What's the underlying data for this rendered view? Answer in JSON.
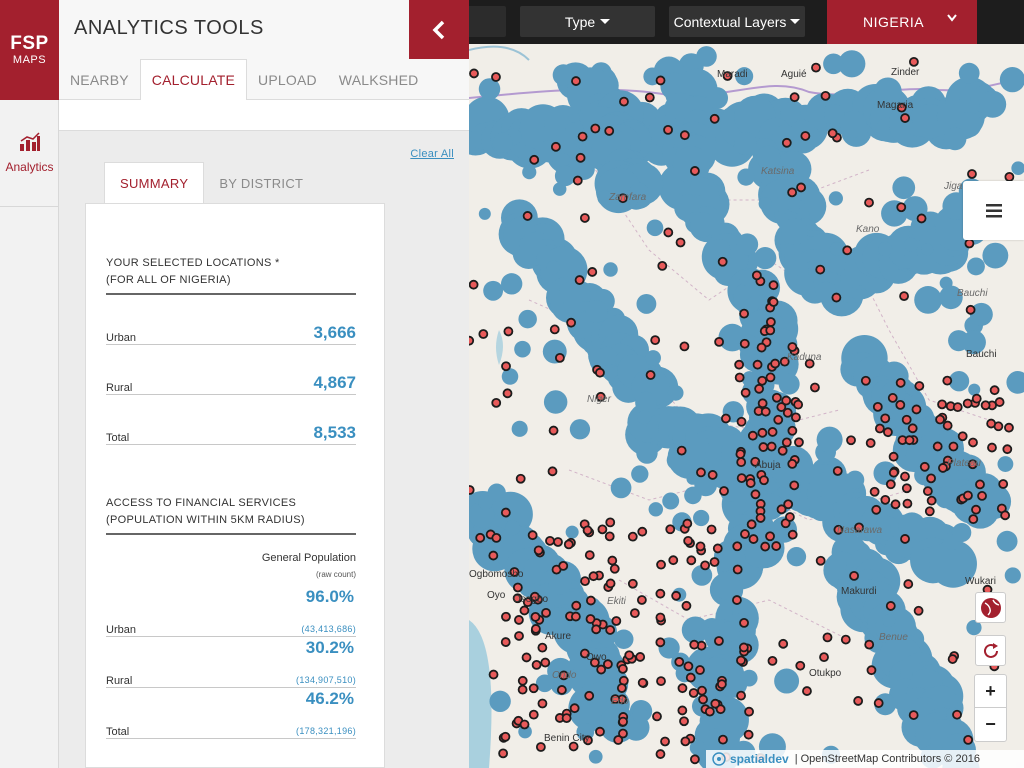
{
  "logo": {
    "line1": "FSP",
    "line2": "MAPS"
  },
  "rail": {
    "analytics_label": "Analytics"
  },
  "panel": {
    "title": "ANALYTICS TOOLS",
    "tabs": [
      "NEARBY",
      "CALCULATE",
      "UPLOAD",
      "WALKSHED"
    ],
    "active_tab": "CALCULATE",
    "clear_all": "Clear All",
    "sub_tabs": [
      "SUMMARY",
      "BY DISTRICT"
    ],
    "active_sub_tab": "SUMMARY"
  },
  "summary": {
    "selected_heading_1": "YOUR SELECTED LOCATIONS *",
    "selected_heading_2": "(FOR ALL OF NIGERIA)",
    "rows": [
      {
        "label": "Urban",
        "value": "3,666"
      },
      {
        "label": "Rural",
        "value": "4,867"
      },
      {
        "label": "Total",
        "value": "8,533"
      }
    ],
    "access_heading_1": "ACCESS TO FINANCIAL SERVICES",
    "access_heading_2": "(POPULATION WITHIN 5KM RADIUS)",
    "population_header": "General Population",
    "raw_count_label": "(raw count)",
    "access_rows": [
      {
        "label": "Urban",
        "percent": "96.0%",
        "count": "(43,413,686)"
      },
      {
        "label": "Rural",
        "percent": "30.2%",
        "count": "(134,907,510)"
      },
      {
        "label": "Total",
        "percent": "46.2%",
        "count": "(178,321,196)"
      }
    ]
  },
  "toolbar": {
    "type_label": "Type",
    "layers_label": "Contextual Layers",
    "country": "NIGERIA"
  },
  "map": {
    "labels": [
      "Zinder",
      "Maradi",
      "Aguié",
      "Magaria",
      "Zamfara",
      "Katsina",
      "Kano",
      "Jigawa",
      "Kaduna",
      "Bauchi",
      "Bauchi",
      "Niger",
      "Abuja",
      "Nasarawa",
      "Plateau",
      "Makurdi",
      "Benue",
      "Wukari",
      "Ogbomosho",
      "Oyo",
      "Osogbo",
      "Akure",
      "Owo",
      "Ondo",
      "Edo",
      "Benin City",
      "Otukpo",
      "Ekiti"
    ],
    "attribution": "| OpenStreetMap Contributors © 2016",
    "brand": "spatialdev",
    "accent_color": "#a3202e",
    "coverage_color": "#5b9bbf",
    "point_color": "#e85a5a"
  },
  "controls": {
    "zoom_in": "+",
    "zoom_out": "−"
  }
}
